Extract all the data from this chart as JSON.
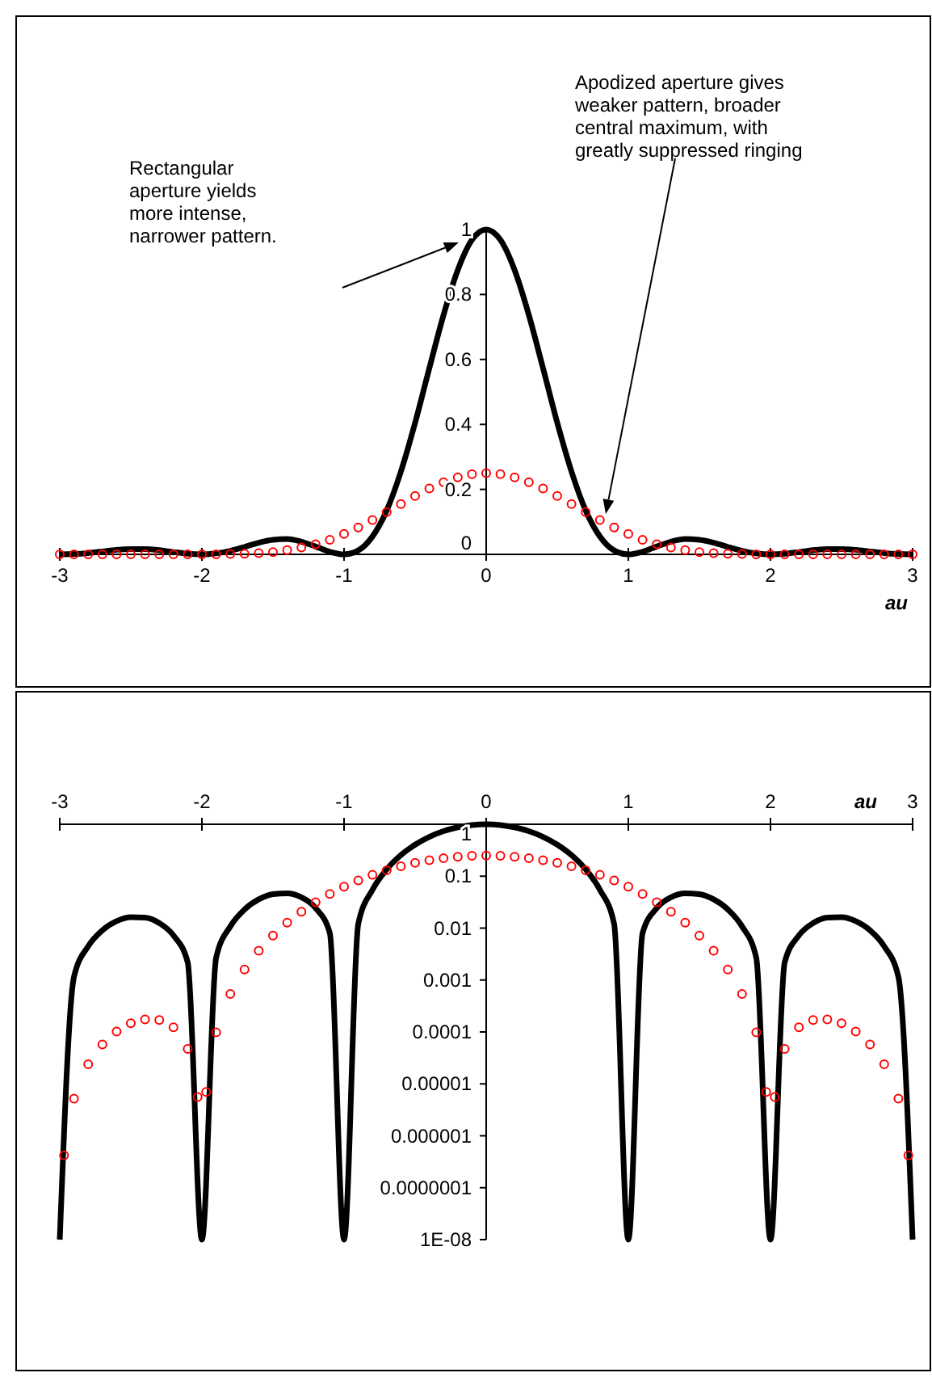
{
  "chart_data": [
    {
      "type": "line",
      "xlim": [
        -3,
        3
      ],
      "xticks": [
        -3,
        -2,
        -1,
        0,
        1,
        2,
        3
      ],
      "ylim": [
        0,
        1
      ],
      "yticks": [
        0,
        0.2,
        0.4,
        0.6,
        0.8,
        1
      ],
      "xlabel": "au",
      "x": [
        -3,
        -2.9,
        -2.8,
        -2.7,
        -2.6,
        -2.5,
        -2.4,
        -2.3,
        -2.2,
        -2.1,
        -2,
        -1.9,
        -1.8,
        -1.7,
        -1.6,
        -1.5,
        -1.4,
        -1.3,
        -1.2,
        -1.1,
        -1,
        -0.9,
        -0.8,
        -0.7,
        -0.6,
        -0.5,
        -0.4,
        -0.3,
        -0.2,
        -0.1,
        0,
        0.1,
        0.2,
        0.3,
        0.4,
        0.5,
        0.6,
        0.7,
        0.8,
        0.9,
        1,
        1.1,
        1.2,
        1.3,
        1.4,
        1.5,
        1.6,
        1.7,
        1.8,
        1.9,
        2,
        2.1,
        2.2,
        2.3,
        2.4,
        2.5,
        2.6,
        2.7,
        2.8,
        2.9,
        3
      ],
      "series": [
        {
          "type": "line",
          "color": "#000000",
          "values": [
            0,
            0.001,
            0.004,
            0.009,
            0.014,
            0.016,
            0.016,
            0.013,
            0.007,
            0.002,
            0,
            0.003,
            0.011,
            0.023,
            0.036,
            0.045,
            0.047,
            0.039,
            0.024,
            0.008,
            0,
            0.012,
            0.055,
            0.135,
            0.255,
            0.405,
            0.573,
            0.737,
            0.875,
            0.968,
            1,
            0.968,
            0.875,
            0.737,
            0.573,
            0.405,
            0.255,
            0.135,
            0.055,
            0.012,
            0,
            0.008,
            0.024,
            0.039,
            0.047,
            0.045,
            0.036,
            0.023,
            0.011,
            0.003,
            0,
            0.002,
            0.007,
            0.013,
            0.016,
            0.016,
            0.014,
            0.009,
            0.004,
            0.001,
            0
          ]
        },
        {
          "type": "scatter",
          "marker": "circle",
          "color": "#ff0000",
          "values": [
            0,
            0,
            0,
            0,
            0,
            0,
            0,
            0,
            0,
            0,
            0,
            0,
            0.001,
            0.002,
            0.004,
            0.007,
            0.013,
            0.021,
            0.031,
            0.045,
            0.063,
            0.083,
            0.106,
            0.13,
            0.155,
            0.18,
            0.203,
            0.222,
            0.237,
            0.247,
            0.25,
            0.247,
            0.237,
            0.222,
            0.203,
            0.18,
            0.155,
            0.13,
            0.106,
            0.083,
            0.063,
            0.045,
            0.031,
            0.021,
            0.013,
            0.007,
            0.004,
            0.002,
            0.001,
            0,
            0,
            0,
            0,
            0,
            0,
            0,
            0,
            0,
            0,
            0,
            0
          ]
        }
      ],
      "annotations": [
        "Rectangular aperture yields more intense, narrower pattern.",
        "Apodized aperture gives weaker pattern, broader central maximum, with greatly suppressed ringing"
      ]
    },
    {
      "type": "line",
      "log": "y",
      "xlim": [
        -3,
        3
      ],
      "xticks": [
        -3,
        -2,
        -1,
        0,
        1,
        2,
        3
      ],
      "xlabel": "au",
      "ylim": [
        1e-08,
        1
      ],
      "yticks": [
        1,
        0.1,
        0.01,
        0.001,
        0.0001,
        {
          "value": 1e-05,
          "label": "0.00001"
        },
        {
          "value": 1e-06,
          "label": "0.000001"
        },
        {
          "value": 1e-07,
          "label": "0.0000001"
        },
        {
          "value": 1e-08,
          "label": "1E-08"
        }
      ],
      "series": [
        {
          "type": "line",
          "color": "#000000",
          "x": [
            -3,
            -2.9,
            -2.8,
            -2.7,
            -2.6,
            -2.5,
            -2.4,
            -2.3,
            -2.2,
            -2.1,
            -2,
            -1.9,
            -1.8,
            -1.7,
            -1.6,
            -1.5,
            -1.4,
            -1.3,
            -1.2,
            -1.1,
            -1,
            -0.9,
            -0.8,
            -0.7,
            -0.6,
            -0.5,
            -0.4,
            -0.3,
            -0.2,
            -0.1,
            0,
            0.1,
            0.2,
            0.3,
            0.4,
            0.5,
            0.6,
            0.7,
            0.8,
            0.9,
            1,
            1.1,
            1.2,
            1.3,
            1.4,
            1.5,
            1.6,
            1.7,
            1.8,
            1.9,
            2,
            2.1,
            2.2,
            2.3,
            2.4,
            2.5,
            2.6,
            2.7,
            2.8,
            2.9,
            3
          ],
          "values": [
            1e-08,
            0.00115,
            0.00447,
            0.0091,
            0.0136,
            0.0162,
            0.0159,
            0.0125,
            0.00723,
            0.00219,
            1e-08,
            0.00268,
            0.0108,
            0.0229,
            0.0358,
            0.045,
            0.0468,
            0.0392,
            0.0243,
            0.008,
            1e-08,
            0.012,
            0.0547,
            0.135,
            0.255,
            0.405,
            0.573,
            0.737,
            0.875,
            0.968,
            1,
            0.968,
            0.875,
            0.737,
            0.573,
            0.405,
            0.255,
            0.135,
            0.0547,
            0.012,
            1e-08,
            0.008,
            0.0243,
            0.0392,
            0.0468,
            0.045,
            0.0358,
            0.0229,
            0.0108,
            0.00268,
            1e-08,
            0.00219,
            0.00723,
            0.0125,
            0.0159,
            0.0162,
            0.0136,
            0.0091,
            0.00447,
            0.00115,
            1e-08
          ]
        },
        {
          "type": "scatter",
          "marker": "circle",
          "color": "#ff0000",
          "x": [
            -2.97,
            -2.9,
            -2.8,
            -2.7,
            -2.6,
            -2.5,
            -2.4,
            -2.3,
            -2.2,
            -2.1,
            -2.03,
            -1.97,
            -1.9,
            -1.8,
            -1.7,
            -1.6,
            -1.5,
            -1.4,
            -1.3,
            -1.2,
            -1.1,
            -1,
            -0.9,
            -0.8,
            -0.7,
            -0.6,
            -0.5,
            -0.4,
            -0.3,
            -0.2,
            -0.1,
            0,
            0.1,
            0.2,
            0.3,
            0.4,
            0.5,
            0.6,
            0.7,
            0.8,
            0.9,
            1,
            1.1,
            1.2,
            1.3,
            1.4,
            1.5,
            1.6,
            1.7,
            1.8,
            1.9,
            1.97,
            2.03,
            2.1,
            2.2,
            2.3,
            2.4,
            2.5,
            2.6,
            2.7,
            2.8,
            2.9,
            2.97
          ],
          "values": [
            4.2e-07,
            5.2e-06,
            2.39e-05,
            5.75e-05,
            0.000102,
            0.000147,
            0.000175,
            0.00017,
            0.000123,
            4.71e-05,
            5.6e-06,
            7e-06,
            9.84e-05,
            0.000538,
            0.0016,
            0.00368,
            0.0072,
            0.0127,
            0.0206,
            0.0314,
            0.0453,
            0.0625,
            0.0828,
            0.106,
            0.13,
            0.155,
            0.18,
            0.203,
            0.222,
            0.237,
            0.247,
            0.25,
            0.247,
            0.237,
            0.222,
            0.203,
            0.18,
            0.155,
            0.13,
            0.106,
            0.0828,
            0.0625,
            0.0453,
            0.0314,
            0.0206,
            0.0127,
            0.0072,
            0.00368,
            0.0016,
            0.000538,
            9.84e-05,
            7e-06,
            5.6e-06,
            4.71e-05,
            0.000123,
            0.00017,
            0.000175,
            0.000147,
            0.000102,
            5.75e-05,
            2.39e-05,
            5.2e-06,
            4.2e-07
          ]
        }
      ]
    }
  ]
}
